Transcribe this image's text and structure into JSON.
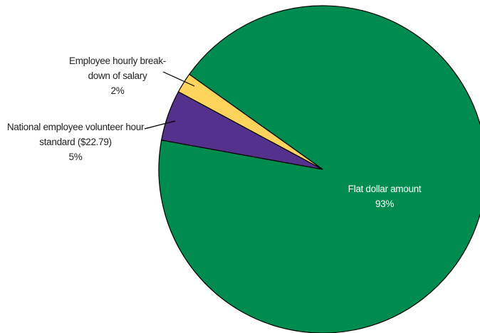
{
  "chart_data": {
    "type": "pie",
    "categories": [
      "Flat dollar amount",
      "National employee volunteer hour standard ($22.79)",
      "Employee hourly break-down of salary"
    ],
    "values": [
      93,
      5,
      2
    ],
    "value_labels": [
      "93%",
      "5%",
      "2%"
    ],
    "colors": [
      "#008c4e",
      "#53318c",
      "#ffd45c"
    ]
  }
}
